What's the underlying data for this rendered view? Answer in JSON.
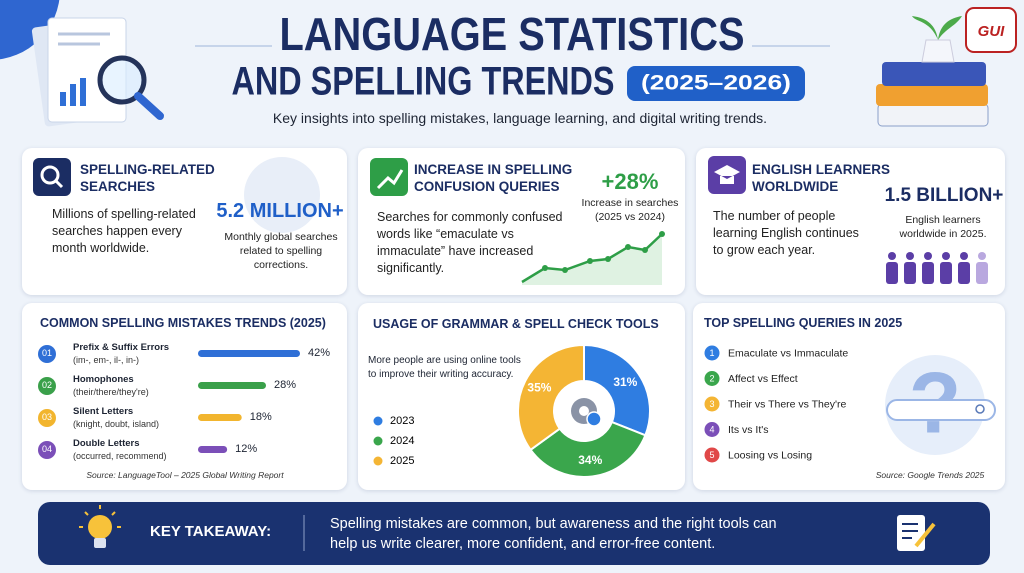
{
  "header": {
    "title_line1": "LANGUAGE STATISTICS",
    "title_line2": "AND SPELLING TRENDS",
    "year_badge": "(2025–2026)",
    "subtitle": "Key insights into spelling mistakes, language learning, and digital writing trends.",
    "logo": "GUI"
  },
  "cards": [
    {
      "title": "SPELLING-RELATED SEARCHES",
      "text": "Millions of spelling-related searches happen every month worldwide.",
      "stat": "5.2 MILLION+",
      "stat_note": "Monthly global searches related to spelling corrections."
    },
    {
      "title": "INCREASE IN SPELLING CONFUSION QUERIES",
      "text": "Searches for commonly confused words like “emaculate vs immaculate” have increased significantly.",
      "stat": "+28%",
      "stat_note": "Increase in searches (2025 vs 2024)"
    },
    {
      "title": "ENGLISH LEARNERS WORLDWIDE",
      "text": "The number of people learning English continues to grow each year.",
      "stat": "1.5 BILLION+",
      "stat_note": "English learners worldwide in 2025."
    }
  ],
  "mistakes": {
    "title": "COMMON SPELLING MISTAKES TRENDS (2025)",
    "xlim": [
      0,
      42
    ],
    "items": [
      {
        "number": "01",
        "label": "Prefix & Suffix Errors",
        "examples": "(im-, em-, il-, in-)",
        "value": 42,
        "value_label": "42%",
        "color": "#2f6fd6"
      },
      {
        "number": "02",
        "label": "Homophones",
        "examples": "(their/there/they're)",
        "value": 28,
        "value_label": "28%",
        "color": "#3aa04a"
      },
      {
        "number": "03",
        "label": "Silent Letters",
        "examples": "(knight, doubt, island)",
        "value": 18,
        "value_label": "18%",
        "color": "#f2b52e"
      },
      {
        "number": "04",
        "label": "Double Letters",
        "examples": "(occurred, recommend)",
        "value": 12,
        "value_label": "12%",
        "color": "#7b4fb8"
      }
    ],
    "source": "Source: LanguageTool – 2025 Global Writing Report"
  },
  "tools": {
    "type": "donut",
    "title": "USAGE OF GRAMMAR & SPELL CHECK TOOLS",
    "text": "More people are using online tools to improve their writing accuracy.",
    "series": [
      {
        "name": "2023",
        "value": 31,
        "value_label": "31%",
        "color": "#2f7de1"
      },
      {
        "name": "2024",
        "value": 34,
        "value_label": "34%",
        "color": "#3aa64c"
      },
      {
        "name": "2025",
        "value": 35,
        "value_label": "35%",
        "color": "#f4b534"
      }
    ]
  },
  "queries": {
    "title": "TOP SPELLING QUERIES IN 2025",
    "items": [
      {
        "number": "1",
        "label": "Emaculate vs Immaculate",
        "color": "#2f7de1"
      },
      {
        "number": "2",
        "label": "Affect vs Effect",
        "color": "#3aa64c"
      },
      {
        "number": "3",
        "label": "Their vs There vs They're",
        "color": "#f4b534"
      },
      {
        "number": "4",
        "label": "Its vs It's",
        "color": "#7b4fb8"
      },
      {
        "number": "5",
        "label": "Loosing vs Losing",
        "color": "#e04848"
      }
    ],
    "source": "Source: Google Trends 2025"
  },
  "takeaway": {
    "label": "KEY TAKEAWAY:",
    "text": "Spelling mistakes are common, but awareness and the right tools can help us write clearer, more confident, and error-free content."
  }
}
